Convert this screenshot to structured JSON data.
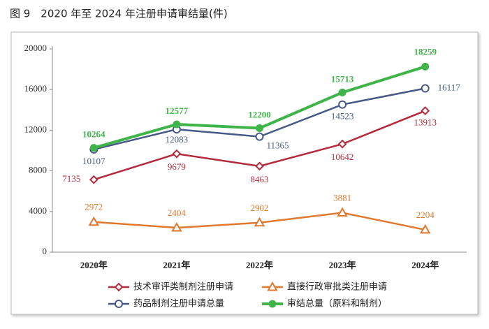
{
  "chart_data": {
    "type": "line",
    "title": "图 9　2020 年至 2024 年注册申请审结量(件)",
    "categories": [
      "2020年",
      "2021年",
      "2022年",
      "2023年",
      "2024年"
    ],
    "series": [
      {
        "name": "技术审评类制剂注册申请",
        "color": "#b52a3c",
        "marker": "diamond",
        "values": [
          7135,
          9679,
          8463,
          10642,
          13913
        ]
      },
      {
        "name": "直接行政审批类注册申请",
        "color": "#e0782e",
        "marker": "triangle",
        "values": [
          2972,
          2404,
          2902,
          3881,
          2204
        ]
      },
      {
        "name": "药品制剂注册申请总量",
        "color": "#475a86",
        "marker": "circle-open",
        "values": [
          10107,
          12083,
          11365,
          14523,
          16117
        ]
      },
      {
        "name": "审结总量（原料和制剂）",
        "color": "#3fb549",
        "marker": "circle",
        "values": [
          10264,
          12577,
          12200,
          15713,
          18259
        ]
      }
    ],
    "ylim": [
      0,
      20000
    ],
    "yticks": [
      0,
      4000,
      8000,
      12000,
      16000,
      20000
    ]
  }
}
